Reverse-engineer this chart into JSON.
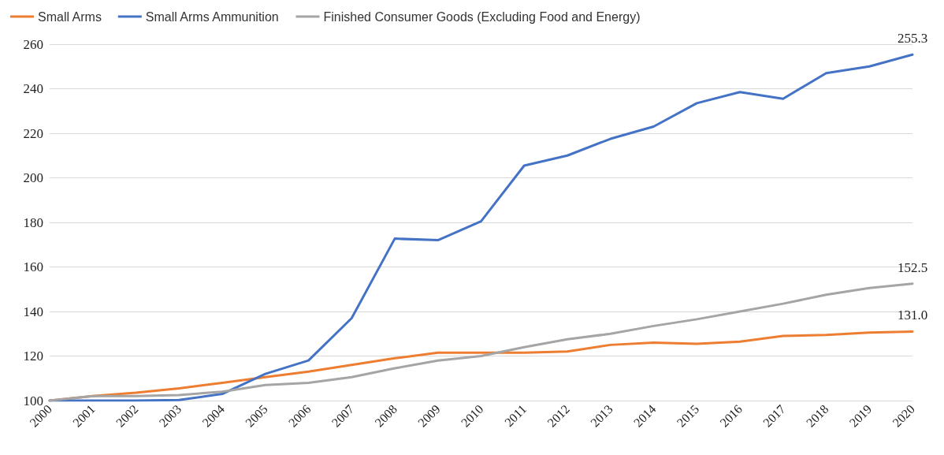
{
  "chart_data": {
    "type": "line",
    "categories": [
      "2000",
      "2001",
      "2002",
      "2003",
      "2004",
      "2005",
      "2006",
      "2007",
      "2008",
      "2009",
      "2010",
      "2011",
      "2012",
      "2013",
      "2014",
      "2015",
      "2016",
      "2017",
      "2018",
      "2019",
      "2020"
    ],
    "series": [
      {
        "name": "Small Arms",
        "color": "#ed7d31",
        "values": [
          100,
          102,
          103.5,
          105.5,
          108,
          110.5,
          113,
          116,
          119,
          121.5,
          121.5,
          121.5,
          122,
          125,
          126,
          125.5,
          126.5,
          129,
          129.5,
          130.5,
          131.0
        ],
        "value_labels": [
          null,
          null,
          null,
          null,
          null,
          null,
          null,
          null,
          null,
          null,
          null,
          null,
          null,
          null,
          null,
          null,
          null,
          null,
          null,
          null,
          "131.0"
        ]
      },
      {
        "name": "Small Arms Ammunition",
        "color": "#4472c4",
        "values": [
          100,
          100,
          100,
          100.3,
          103,
          112,
          118,
          137,
          172.7,
          172,
          180.5,
          205.5,
          210,
          217.5,
          223,
          233.5,
          238.5,
          235.5,
          247,
          250,
          255.3
        ],
        "value_labels": [
          null,
          null,
          null,
          null,
          null,
          null,
          null,
          null,
          null,
          null,
          null,
          null,
          null,
          null,
          null,
          null,
          null,
          null,
          null,
          null,
          "255.3"
        ]
      },
      {
        "name": "Finished Consumer Goods (Excluding Food and Energy)",
        "color": "#a5a5a5",
        "values": [
          100,
          102,
          102,
          102.5,
          104,
          107,
          108,
          110.5,
          114.5,
          118,
          120,
          124,
          127.5,
          130,
          133.5,
          136.5,
          140,
          143.5,
          147.5,
          150.5,
          152.5
        ],
        "value_labels": [
          null,
          null,
          null,
          null,
          null,
          null,
          null,
          null,
          null,
          null,
          null,
          null,
          null,
          null,
          null,
          null,
          null,
          null,
          null,
          null,
          "152.5"
        ]
      }
    ],
    "ylim": [
      100,
      260
    ],
    "yticks": [
      100,
      120,
      140,
      160,
      180,
      200,
      220,
      240,
      260
    ],
    "grid": "y",
    "legend": "top left",
    "marker": "none",
    "line_style": "solid"
  }
}
